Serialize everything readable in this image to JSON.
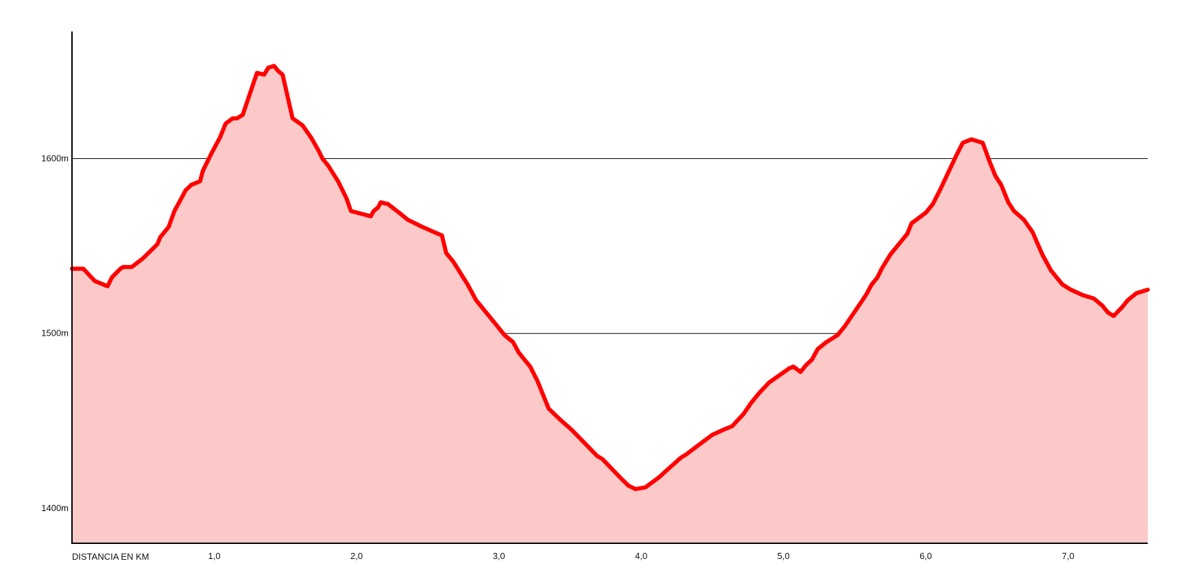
{
  "chart_data": {
    "type": "area",
    "title": "",
    "xlabel": "DISTANCIA EN KM",
    "ylabel": "",
    "xlim": [
      0,
      7.56
    ],
    "ylim": [
      1380,
      1675
    ],
    "x_ticks": [
      {
        "value": 1.0,
        "label": "1,0"
      },
      {
        "value": 2.0,
        "label": "2,0"
      },
      {
        "value": 3.0,
        "label": "3,0"
      },
      {
        "value": 4.0,
        "label": "4,0"
      },
      {
        "value": 5.0,
        "label": "5,0"
      },
      {
        "value": 6.0,
        "label": "6,0"
      },
      {
        "value": 7.0,
        "label": "7,0"
      }
    ],
    "y_ticks": [
      {
        "value": 1400,
        "label": "1400m"
      },
      {
        "value": 1500,
        "label": "1500m"
      },
      {
        "value": 1600,
        "label": "1600m"
      }
    ],
    "grid": "horizontal",
    "colors": {
      "line": "#ff0000",
      "fill": "#fcc9c9",
      "axis": "#000000",
      "grid": "#000000"
    },
    "series": [
      {
        "x": [
          0,
          0.08,
          0.16,
          0.25,
          0.28,
          0.34,
          0.36,
          0.42,
          0.5,
          0.6,
          0.62,
          0.68,
          0.72,
          0.8,
          0.84,
          0.9,
          0.92,
          0.98,
          1.04,
          1.08,
          1.13,
          1.16,
          1.2,
          1.3,
          1.35,
          1.38,
          1.42,
          1.45,
          1.48,
          1.55,
          1.62,
          1.68,
          1.73,
          1.76,
          1.8,
          1.87,
          1.93,
          1.96,
          2.1,
          2.12,
          2.15,
          2.17,
          2.22,
          2.3,
          2.36,
          2.46,
          2.6,
          2.63,
          2.68,
          2.78,
          2.84,
          2.94,
          2.98,
          3.04,
          3.1,
          3.14,
          3.22,
          3.27,
          3.35,
          3.44,
          3.51,
          3.57,
          3.63,
          3.69,
          3.73,
          3.8,
          3.86,
          3.91,
          3.96,
          4.03,
          4.08,
          4.13,
          4.17,
          4.28,
          4.32,
          4.4,
          4.5,
          4.58,
          4.64,
          4.72,
          4.77,
          4.83,
          4.9,
          4.97,
          5.04,
          5.07,
          5.12,
          5.16,
          5.2,
          5.24,
          5.3,
          5.38,
          5.43,
          5.48,
          5.53,
          5.58,
          5.62,
          5.66,
          5.69,
          5.75,
          5.82,
          5.87,
          5.9,
          6.0,
          6.05,
          6.1,
          6.21,
          6.26,
          6.32,
          6.4,
          6.45,
          6.49,
          6.53,
          6.58,
          6.62,
          6.69,
          6.75,
          6.82,
          6.88,
          6.91,
          6.96,
          7.02,
          7.1,
          7.14,
          7.18,
          7.24,
          7.28,
          7.32,
          7.38,
          7.42,
          7.48,
          7.56
        ],
        "y": [
          1537,
          1537,
          1530,
          1527,
          1532,
          1537,
          1538,
          1538,
          1543,
          1551,
          1555,
          1561,
          1570,
          1582,
          1585,
          1587,
          1593,
          1603,
          1612,
          1620,
          1623,
          1623,
          1625,
          1649,
          1648,
          1652,
          1653,
          1650,
          1648,
          1623,
          1619,
          1612,
          1605,
          1600,
          1596,
          1587,
          1577,
          1570,
          1567,
          1570,
          1572,
          1575,
          1574,
          1569,
          1565,
          1561,
          1556,
          1546,
          1541,
          1528,
          1519,
          1509,
          1505,
          1499,
          1495,
          1489,
          1481,
          1473,
          1457,
          1450,
          1445,
          1440,
          1435,
          1430,
          1428,
          1422,
          1417,
          1413,
          1411,
          1412,
          1415,
          1418,
          1421,
          1429,
          1431,
          1436,
          1442,
          1445,
          1447,
          1454,
          1460,
          1466,
          1472,
          1476,
          1480,
          1481,
          1478,
          1482,
          1485,
          1491,
          1495,
          1499,
          1504,
          1510,
          1516,
          1522,
          1528,
          1532,
          1537,
          1545,
          1552,
          1557,
          1563,
          1569,
          1574,
          1582,
          1601,
          1609,
          1611,
          1609,
          1598,
          1590,
          1585,
          1575,
          1570,
          1565,
          1558,
          1545,
          1536,
          1533,
          1528,
          1525,
          1522,
          1521,
          1520,
          1516,
          1512,
          1510,
          1515,
          1519,
          1523,
          1525
        ]
      }
    ]
  }
}
